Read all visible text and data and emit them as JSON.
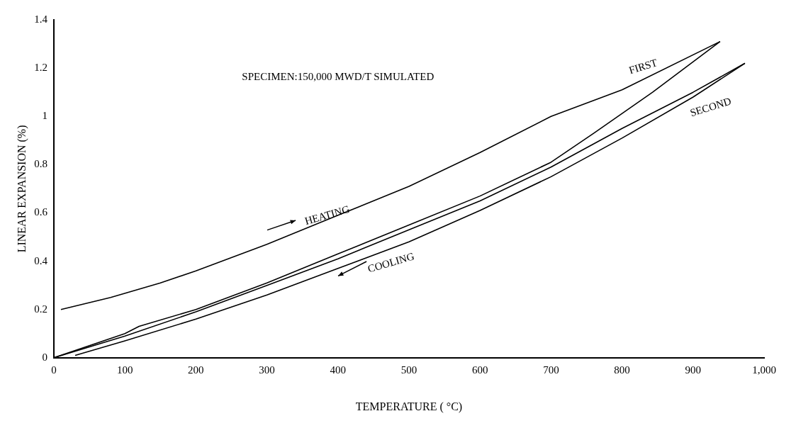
{
  "chart_data": {
    "type": "line",
    "xlabel": "TEMPERATURE ( °C)",
    "ylabel": "LINEAR EXPANSION (%)",
    "xlim": [
      0,
      1000
    ],
    "ylim": [
      0,
      1.4
    ],
    "xticks": [
      0,
      100,
      200,
      300,
      400,
      500,
      600,
      700,
      800,
      900,
      {
        "value": 1000,
        "label": "1,000"
      }
    ],
    "yticks": [
      0,
      0.2,
      0.4,
      0.6,
      0.8,
      1.0,
      1.2,
      1.4
    ],
    "grid": false,
    "legend": false,
    "marker": "none",
    "line_style": "solid",
    "series": [
      {
        "color": "#000000",
        "x": [
          10,
          80,
          150,
          200,
          300,
          400,
          500,
          600,
          700,
          800,
          938
        ],
        "values": [
          0.2,
          0.25,
          0.31,
          0.36,
          0.47,
          0.59,
          0.71,
          0.85,
          1.0,
          1.11,
          1.31
        ]
      },
      {
        "color": "#000000",
        "x": [
          938,
          843,
          760,
          700,
          600,
          500,
          400,
          300,
          200,
          120,
          100,
          0
        ],
        "values": [
          1.31,
          1.1,
          0.93,
          0.81,
          0.67,
          0.55,
          0.43,
          0.31,
          0.2,
          0.13,
          0.1,
          0
        ]
      },
      {
        "color": "#000000",
        "x": [
          0,
          100,
          200,
          300,
          400,
          500,
          600,
          700,
          800,
          900,
          973
        ],
        "values": [
          0,
          0.09,
          0.19,
          0.3,
          0.41,
          0.53,
          0.65,
          0.79,
          0.95,
          1.1,
          1.22
        ]
      },
      {
        "color": "#000000",
        "x": [
          30,
          100,
          200,
          300,
          400,
          500,
          600,
          700,
          800,
          900,
          973
        ],
        "values": [
          0.01,
          0.07,
          0.16,
          0.26,
          0.37,
          0.48,
          0.61,
          0.75,
          0.91,
          1.08,
          1.22
        ]
      }
    ],
    "annotations": [
      "SPECIMEN:150,000 MWD/T SIMULATED",
      "HEATING",
      "COOLING",
      "FIRST",
      "SECOND"
    ]
  }
}
